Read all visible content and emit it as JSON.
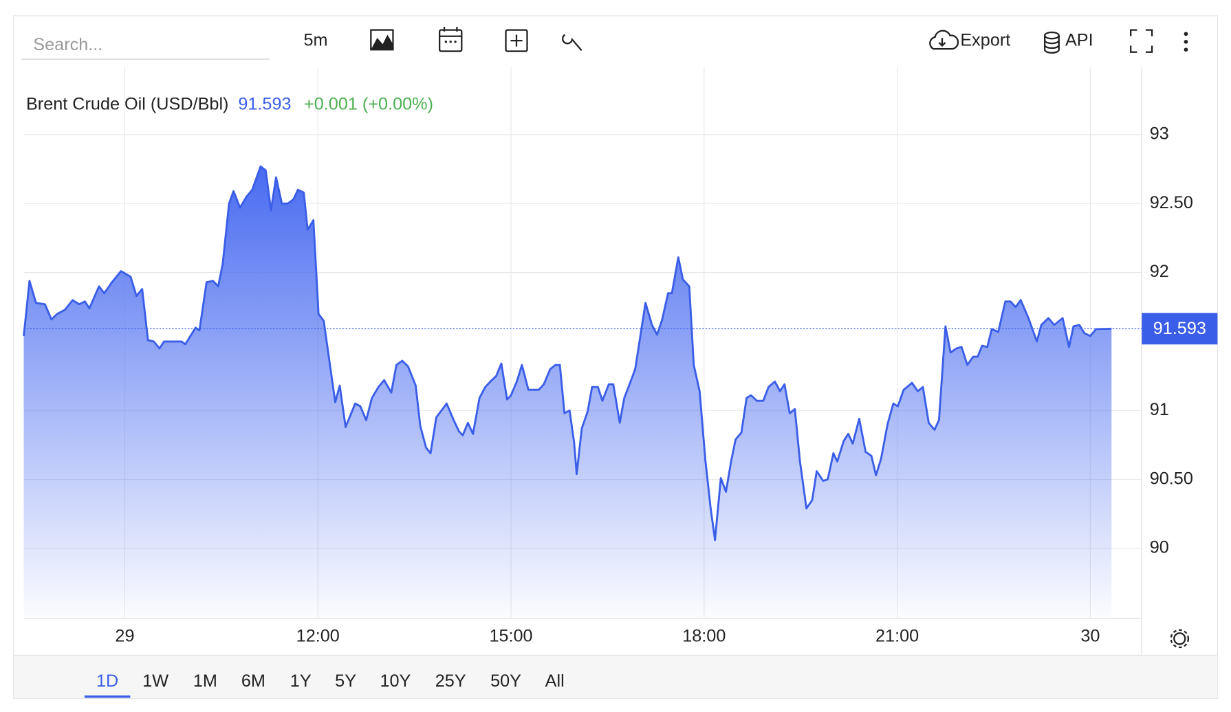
{
  "toolbar": {
    "search_placeholder": "Search...",
    "interval": "5m",
    "export": "Export",
    "api": "API"
  },
  "chart_data": {
    "type": "area",
    "title": "Brent Crude Oil (USD/Bbl)",
    "change": "+0.001 (+0.00%)",
    "color": "#3b5ee8",
    "grid": true,
    "x": [
      7.43,
      7.52,
      7.62,
      7.76,
      7.86,
      7.95,
      8.07,
      8.19,
      8.29,
      8.38,
      8.45,
      8.6,
      8.68,
      8.8,
      8.94,
      9.09,
      9.18,
      9.27,
      9.36,
      9.45,
      9.54,
      9.61,
      9.76,
      9.88,
      9.94,
      10.1,
      10.16,
      10.27,
      10.37,
      10.45,
      10.52,
      10.62,
      10.69,
      10.79,
      10.89,
      10.98,
      11.11,
      11.19,
      11.27,
      11.35,
      11.44,
      11.53,
      11.62,
      11.69,
      11.78,
      11.84,
      11.93,
      12.01,
      12.09,
      12.27,
      12.34,
      12.43,
      12.58,
      12.66,
      12.75,
      12.84,
      12.94,
      13.03,
      13.14,
      13.22,
      13.31,
      13.4,
      13.52,
      13.59,
      13.68,
      13.75,
      13.84,
      14.0,
      14.11,
      14.19,
      14.25,
      14.33,
      14.41,
      14.51,
      14.6,
      14.68,
      14.77,
      14.85,
      14.94,
      15.0,
      15.09,
      15.17,
      15.27,
      15.43,
      15.51,
      15.61,
      15.69,
      15.76,
      15.83,
      15.91,
      15.98,
      16.02,
      16.1,
      16.19,
      16.26,
      16.35,
      16.42,
      16.52,
      16.59,
      16.69,
      16.76,
      16.85,
      16.93,
      17.01,
      17.09,
      17.19,
      17.27,
      17.35,
      17.44,
      17.5,
      17.6,
      17.67,
      17.77,
      17.84,
      17.93,
      18.02,
      18.1,
      18.17,
      18.26,
      18.34,
      18.42,
      18.49,
      18.58,
      18.66,
      18.73,
      18.82,
      18.92,
      19.0,
      19.1,
      19.18,
      19.25,
      19.33,
      19.41,
      19.49,
      19.59,
      19.68,
      19.75,
      19.85,
      19.92,
      20.01,
      20.07,
      20.17,
      20.24,
      20.31,
      20.41,
      20.51,
      20.6,
      20.67,
      20.75,
      20.85,
      20.94,
      21.01,
      21.1,
      21.23,
      21.32,
      21.4,
      21.49,
      21.58,
      21.65,
      21.75,
      21.83,
      21.92,
      22.0,
      22.09,
      22.18,
      22.25,
      22.32,
      22.4,
      22.47,
      22.57,
      22.68,
      22.76,
      22.84,
      22.92,
      23.04,
      23.17,
      23.24,
      23.35,
      23.44,
      23.57,
      23.67,
      23.74,
      23.83,
      23.91,
      24.0,
      24.09,
      24.33
    ],
    "values": [
      91.54,
      91.94,
      91.78,
      91.77,
      91.66,
      91.7,
      91.73,
      91.8,
      91.77,
      91.79,
      91.74,
      91.9,
      91.85,
      91.93,
      92.01,
      91.97,
      91.83,
      91.88,
      91.51,
      91.5,
      91.45,
      91.5,
      91.5,
      91.5,
      91.48,
      91.6,
      91.58,
      91.93,
      91.94,
      91.9,
      92.06,
      92.5,
      92.59,
      92.47,
      92.55,
      92.6,
      92.77,
      92.74,
      92.45,
      92.69,
      92.5,
      92.5,
      92.53,
      92.6,
      92.58,
      92.31,
      92.38,
      91.7,
      91.65,
      91.06,
      91.18,
      90.88,
      91.05,
      91.03,
      90.93,
      91.09,
      91.17,
      91.22,
      91.13,
      91.33,
      91.36,
      91.32,
      91.18,
      90.89,
      90.73,
      90.69,
      90.95,
      91.05,
      90.93,
      90.85,
      90.82,
      90.91,
      90.83,
      91.09,
      91.17,
      91.21,
      91.25,
      91.34,
      91.08,
      91.11,
      91.21,
      91.33,
      91.15,
      91.15,
      91.19,
      91.3,
      91.33,
      91.33,
      90.98,
      91.0,
      90.77,
      90.54,
      90.87,
      90.99,
      91.17,
      91.17,
      91.07,
      91.19,
      91.19,
      90.91,
      91.09,
      91.2,
      91.3,
      91.54,
      91.78,
      91.62,
      91.55,
      91.66,
      91.85,
      91.85,
      92.11,
      91.95,
      91.9,
      91.33,
      91.14,
      90.64,
      90.3,
      90.06,
      90.51,
      90.41,
      90.63,
      90.79,
      90.84,
      91.09,
      91.11,
      91.07,
      91.07,
      91.17,
      91.21,
      91.14,
      91.19,
      90.98,
      91.01,
      90.63,
      90.29,
      90.35,
      90.56,
      90.49,
      90.5,
      90.69,
      90.63,
      90.78,
      90.83,
      90.76,
      90.94,
      90.7,
      90.67,
      90.53,
      90.65,
      90.9,
      91.05,
      91.03,
      91.15,
      91.2,
      91.14,
      91.17,
      90.91,
      90.86,
      90.93,
      91.61,
      91.42,
      91.45,
      91.46,
      91.33,
      91.39,
      91.39,
      91.47,
      91.46,
      91.59,
      91.57,
      91.79,
      91.79,
      91.75,
      91.8,
      91.67,
      91.5,
      91.62,
      91.67,
      91.62,
      91.67,
      91.46,
      91.61,
      91.62,
      91.56,
      91.54,
      91.59,
      91.593
    ],
    "xlim": [
      7.43,
      24.8
    ],
    "ylim": [
      89.5,
      93.49
    ],
    "xticks": [
      {
        "value": 9,
        "label": "29"
      },
      {
        "value": 12,
        "label": "12:00"
      },
      {
        "value": 15,
        "label": "15:00"
      },
      {
        "value": 18,
        "label": "18:00"
      },
      {
        "value": 21,
        "label": "21:00"
      },
      {
        "value": 24,
        "label": "30"
      }
    ],
    "yticks": [
      90,
      {
        "value": 90.5,
        "label": "90.50"
      },
      91,
      92,
      {
        "value": 92.5,
        "label": "92.50"
      },
      93
    ]
  },
  "range_buttons": [
    "1D",
    "1W",
    "1M",
    "6M",
    "1Y",
    "5Y",
    "10Y",
    "25Y",
    "50Y",
    "All"
  ],
  "active_range": 0
}
